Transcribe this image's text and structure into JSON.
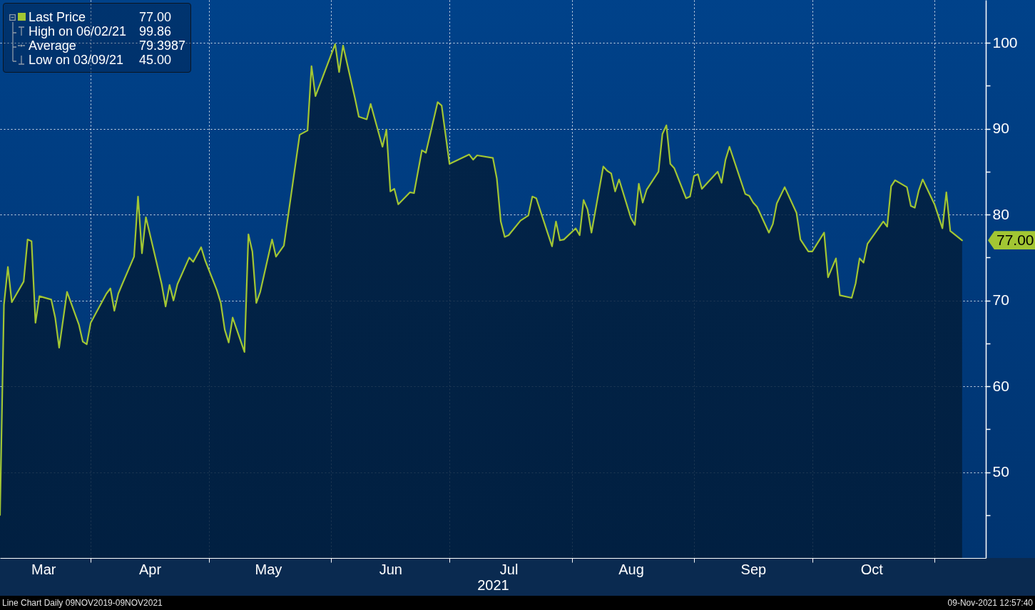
{
  "chart_data": {
    "type": "area",
    "xlabel": "2021",
    "x": [
      "2021-03-09",
      "2021-03-10",
      "2021-03-11",
      "2021-03-12",
      "2021-03-15",
      "2021-03-16",
      "2021-03-17",
      "2021-03-18",
      "2021-03-19",
      "2021-03-22",
      "2021-03-23",
      "2021-03-24",
      "2021-03-26",
      "2021-03-29",
      "2021-03-30",
      "2021-03-31",
      "2021-04-01",
      "2021-04-05",
      "2021-04-06",
      "2021-04-07",
      "2021-04-08",
      "2021-04-09",
      "2021-04-12",
      "2021-04-13",
      "2021-04-14",
      "2021-04-15",
      "2021-04-19",
      "2021-04-20",
      "2021-04-21",
      "2021-04-22",
      "2021-04-23",
      "2021-04-26",
      "2021-04-27",
      "2021-04-29",
      "2021-04-30",
      "2021-05-03",
      "2021-05-04",
      "2021-05-05",
      "2021-05-06",
      "2021-05-07",
      "2021-05-10",
      "2021-05-11",
      "2021-05-12",
      "2021-05-13",
      "2021-05-14",
      "2021-05-17",
      "2021-05-18",
      "2021-05-20",
      "2021-05-24",
      "2021-05-26",
      "2021-05-27",
      "2021-05-28",
      "2021-06-02",
      "2021-06-03",
      "2021-06-04",
      "2021-06-07",
      "2021-06-08",
      "2021-06-10",
      "2021-06-11",
      "2021-06-14",
      "2021-06-15",
      "2021-06-16",
      "2021-06-17",
      "2021-06-18",
      "2021-06-21",
      "2021-06-22",
      "2021-06-24",
      "2021-06-25",
      "2021-06-28",
      "2021-06-29",
      "2021-07-01",
      "2021-07-06",
      "2021-07-07",
      "2021-07-08",
      "2021-07-12",
      "2021-07-13",
      "2021-07-14",
      "2021-07-15",
      "2021-07-16",
      "2021-07-19",
      "2021-07-21",
      "2021-07-22",
      "2021-07-23",
      "2021-07-26",
      "2021-07-27",
      "2021-07-28",
      "2021-07-29",
      "2021-07-30",
      "2021-08-02",
      "2021-08-03",
      "2021-08-04",
      "2021-08-05",
      "2021-08-06",
      "2021-08-09",
      "2021-08-10",
      "2021-08-11",
      "2021-08-12",
      "2021-08-13",
      "2021-08-16",
      "2021-08-17",
      "2021-08-18",
      "2021-08-19",
      "2021-08-20",
      "2021-08-23",
      "2021-08-24",
      "2021-08-25",
      "2021-08-26",
      "2021-08-27",
      "2021-08-30",
      "2021-08-31",
      "2021-09-01",
      "2021-09-02",
      "2021-09-03",
      "2021-09-07",
      "2021-09-08",
      "2021-09-09",
      "2021-09-10",
      "2021-09-14",
      "2021-09-15",
      "2021-09-16",
      "2021-09-17",
      "2021-09-20",
      "2021-09-21",
      "2021-09-22",
      "2021-09-24",
      "2021-09-27",
      "2021-09-28",
      "2021-09-30",
      "2021-10-01",
      "2021-10-04",
      "2021-10-05",
      "2021-10-07",
      "2021-10-08",
      "2021-10-11",
      "2021-10-12",
      "2021-10-13",
      "2021-10-14",
      "2021-10-15",
      "2021-10-19",
      "2021-10-20",
      "2021-10-21",
      "2021-10-22",
      "2021-10-25",
      "2021-10-26",
      "2021-10-27",
      "2021-10-28",
      "2021-10-29",
      "2021-11-01",
      "2021-11-03",
      "2021-11-04",
      "2021-11-05",
      "2021-11-08"
    ],
    "series": [
      {
        "name": "Last Price",
        "color": "#a2c633",
        "values": [
          45,
          69.5,
          73.9,
          69.8,
          72.2,
          77.1,
          76.9,
          67.4,
          70.5,
          70.1,
          68.0,
          64.5,
          71.0,
          67.2,
          65.2,
          64.9,
          67.4,
          70.8,
          71.4,
          68.8,
          70.8,
          71.9,
          75.1,
          82.1,
          75.5,
          79.7,
          71.9,
          69.3,
          71.8,
          70.0,
          71.9,
          75.0,
          74.5,
          76.2,
          74.7,
          71.2,
          69.7,
          66.6,
          65.1,
          68.0,
          64.0,
          77.7,
          75.7,
          69.7,
          71.0,
          77.1,
          75.1,
          76.4,
          89.3,
          89.8,
          97.3,
          93.8,
          99.86,
          96.6,
          99.7,
          93.6,
          91.4,
          91.1,
          92.9,
          87.9,
          89.9,
          82.7,
          83.0,
          81.2,
          82.6,
          82.5,
          87.5,
          87.2,
          93.1,
          92.7,
          85.9,
          87.0,
          86.4,
          86.9,
          86.6,
          84.2,
          79.2,
          77.4,
          77.6,
          79.3,
          79.9,
          82.1,
          81.9,
          77.7,
          76.3,
          79.2,
          77.0,
          77.1,
          78.4,
          77.6,
          81.7,
          80.6,
          77.9,
          85.6,
          85.1,
          84.8,
          82.7,
          84.1,
          79.6,
          78.8,
          83.6,
          81.4,
          82.9,
          85.0,
          89.4,
          90.4,
          85.9,
          85.4,
          81.9,
          82.1,
          84.5,
          84.7,
          83.0,
          85.0,
          83.7,
          86.4,
          87.9,
          82.4,
          82.2,
          81.4,
          80.9,
          77.9,
          78.9,
          81.3,
          83.2,
          80.2,
          77.1,
          75.7,
          75.7,
          77.9,
          72.7,
          74.9,
          70.6,
          70.3,
          72.0,
          74.9,
          74.4,
          76.6,
          79.2,
          78.6,
          83.3,
          84.0,
          83.2,
          81.0,
          80.8,
          82.8,
          84.1,
          81.2,
          78.4,
          82.6,
          78.1,
          77.0
        ]
      }
    ],
    "xlim": [
      "2021-03-09",
      "2021-11-14"
    ],
    "xticks": [
      {
        "value": "2021-03-20",
        "label": "Mar"
      },
      {
        "value": "2021-04-01",
        "label": null
      },
      {
        "value": "2021-04-16",
        "label": "Apr"
      },
      {
        "value": "2021-05-01",
        "label": null
      },
      {
        "value": "2021-05-16",
        "label": "May"
      },
      {
        "value": "2021-06-01",
        "label": null
      },
      {
        "value": "2021-06-16",
        "label": "Jun"
      },
      {
        "value": "2021-07-01",
        "label": null
      },
      {
        "value": "2021-07-16",
        "label": "Jul"
      },
      {
        "value": "2021-08-01",
        "label": null
      },
      {
        "value": "2021-08-16",
        "label": "Aug"
      },
      {
        "value": "2021-09-01",
        "label": null
      },
      {
        "value": "2021-09-16",
        "label": "Sep"
      },
      {
        "value": "2021-10-01",
        "label": null
      },
      {
        "value": "2021-10-16",
        "label": "Oct"
      },
      {
        "value": "2021-11-01",
        "label": null
      }
    ],
    "ylim": [
      40,
      105
    ],
    "yticks": [
      {
        "value": 45,
        "label": null
      },
      50,
      {
        "value": 55,
        "label": null
      },
      60,
      {
        "value": 65,
        "label": null
      },
      70,
      {
        "value": 75,
        "label": null
      },
      80,
      {
        "value": 85,
        "label": null
      },
      90,
      {
        "value": 95,
        "label": null
      },
      100
    ],
    "grid": true,
    "legend": "top left",
    "annotations": [
      "77.00",
      "High on 06/02/21",
      "99.86",
      "Average",
      "79.3987",
      "Low on 03/09/21",
      "45.00",
      "Line Chart Daily 09NOV2019-09NOV2021",
      "09-Nov-2021 12:57:40",
      {
        "text": "77.00",
        "x": "2021-11-08",
        "y": 77
      }
    ]
  }
}
